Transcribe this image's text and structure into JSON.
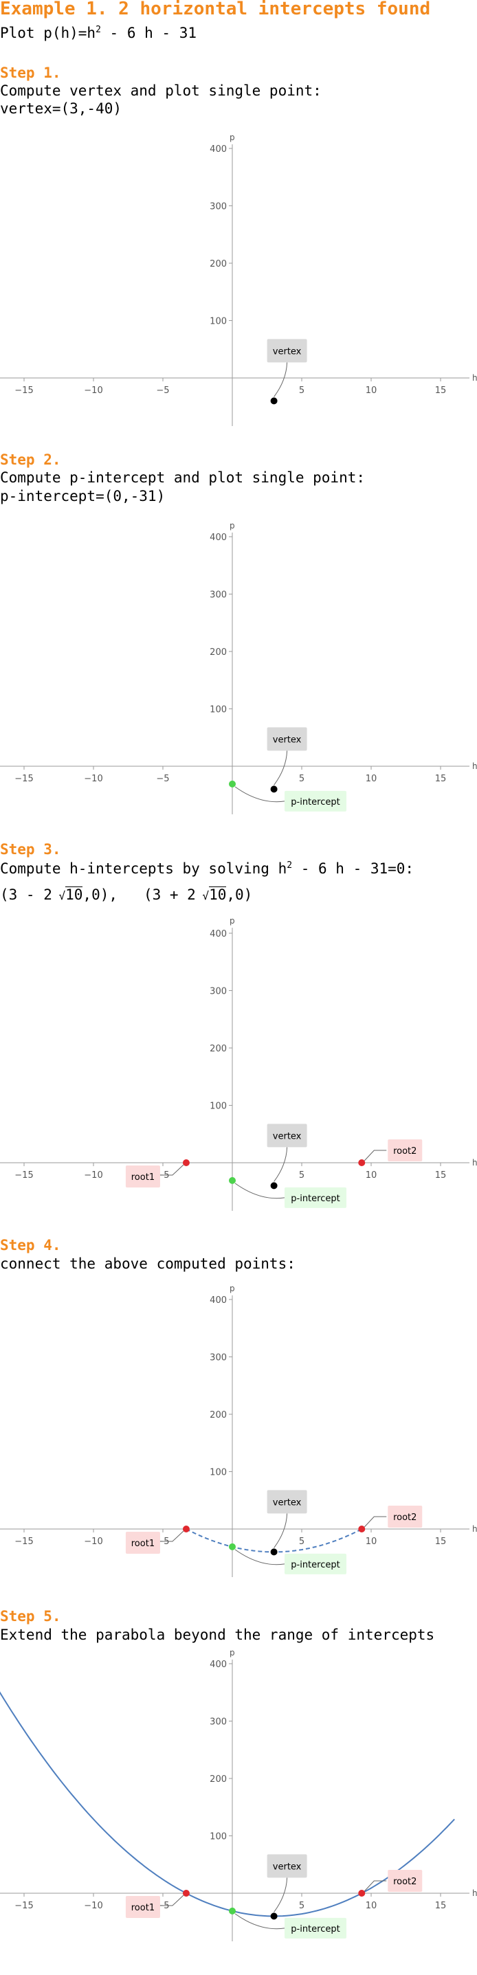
{
  "title": "Example 1. 2 horizontal intercepts found",
  "intro": {
    "prefix": "Plot ",
    "fn": "p(h)=h",
    "exp": "2",
    "rest": " - 6 h - 31"
  },
  "steps": [
    {
      "label": "Step 1.",
      "lines": [
        "Compute vertex and plot single point:"
      ],
      "result": "vertex=(3,-40)"
    },
    {
      "label": "Step 2.",
      "lines": [
        "Compute p-intercept and plot single point:"
      ],
      "result": "p-intercept=(0,-31)"
    },
    {
      "label": "Step 3.",
      "line_a": "Compute h-intercepts by solving h",
      "line_exp": "2",
      "line_b": " - 6 h - 31=0:",
      "roots_text": [
        "(3 - 2",
        "10",
        ",0),",
        "(3 + 2",
        "10",
        ",0)"
      ]
    },
    {
      "label": "Step 4.",
      "lines": [
        "connect the above computed points:"
      ]
    },
    {
      "label": "Step 5.",
      "lines": [
        "Extend the parabola beyond the range of intercepts"
      ]
    }
  ],
  "axis": {
    "xlabel": "h",
    "ylabel": "p",
    "xticks": [
      "-15",
      "-10",
      "-5",
      "5",
      "10",
      "15"
    ],
    "yticks": [
      "100",
      "200",
      "300",
      "400"
    ]
  },
  "point_labels": {
    "vertex": "vertex",
    "p_intercept": "p-intercept",
    "root1": "root1",
    "root2": "root2"
  },
  "colors": {
    "accent": "#f28a1f",
    "vertex": "#000000",
    "p_intercept": "#4cd34c",
    "root": "#e0282e",
    "curve": "#4f7fbf",
    "vertex_box": "#d9d9d9",
    "pint_box": "#e4fbe4",
    "root_box": "#fbdada"
  },
  "chart_data": [
    {
      "type": "scatter",
      "title": "",
      "xlim": [
        -17,
        17
      ],
      "ylim": [
        -80,
        420
      ],
      "points": [
        {
          "name": "vertex",
          "x": 3,
          "y": -40
        }
      ],
      "curve": "none"
    },
    {
      "type": "scatter",
      "title": "",
      "xlim": [
        -17,
        17
      ],
      "ylim": [
        -80,
        420
      ],
      "points": [
        {
          "name": "vertex",
          "x": 3,
          "y": -40
        },
        {
          "name": "p-intercept",
          "x": 0,
          "y": -31
        }
      ],
      "curve": "none"
    },
    {
      "type": "scatter",
      "title": "",
      "xlim": [
        -17,
        17
      ],
      "ylim": [
        -80,
        420
      ],
      "points": [
        {
          "name": "vertex",
          "x": 3,
          "y": -40
        },
        {
          "name": "p-intercept",
          "x": 0,
          "y": -31
        },
        {
          "name": "root1",
          "x": -3.32,
          "y": 0
        },
        {
          "name": "root2",
          "x": 9.32,
          "y": 0
        }
      ],
      "curve": "none"
    },
    {
      "type": "line",
      "title": "",
      "xlim": [
        -17,
        17
      ],
      "ylim": [
        -80,
        420
      ],
      "points": [
        {
          "name": "vertex",
          "x": 3,
          "y": -40
        },
        {
          "name": "p-intercept",
          "x": 0,
          "y": -31
        },
        {
          "name": "root1",
          "x": -3.32,
          "y": 0
        },
        {
          "name": "root2",
          "x": 9.32,
          "y": 0
        }
      ],
      "curve": "dashed",
      "curve_x_range": [
        -3.32,
        9.32
      ]
    },
    {
      "type": "line",
      "title": "",
      "xlim": [
        -17,
        17
      ],
      "ylim": [
        -80,
        380
      ],
      "points": [
        {
          "name": "vertex",
          "x": 3,
          "y": -40
        },
        {
          "name": "p-intercept",
          "x": 0,
          "y": -31
        },
        {
          "name": "root1",
          "x": -3.32,
          "y": 0
        },
        {
          "name": "root2",
          "x": 9.32,
          "y": 0
        }
      ],
      "curve": "solid",
      "curve_x_range": [
        -17,
        16
      ]
    }
  ]
}
